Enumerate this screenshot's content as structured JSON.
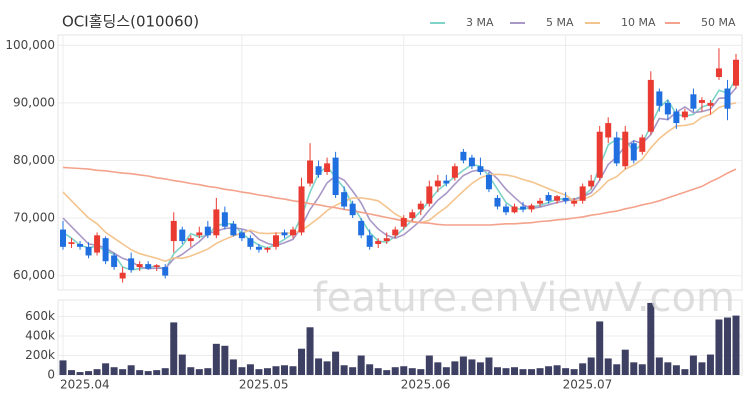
{
  "chart_data": {
    "type": "candlestick",
    "title": "OCI홀딩스(010060)",
    "watermark": "feature.enViewV.com",
    "open": [
      68000,
      65500,
      65500,
      65000,
      64000,
      66500,
      63500,
      59500,
      63000,
      61500,
      62000,
      61500,
      61500,
      66000,
      68000,
      66000,
      67000,
      68500,
      67000,
      71000,
      69000,
      67500,
      66500,
      65000,
      64500,
      65000,
      67500,
      67000,
      67500,
      76000,
      79000,
      78000,
      80500,
      74500,
      72500,
      69500,
      67000,
      65500,
      66000,
      67000,
      68500,
      70000,
      71500,
      72500,
      75500,
      76500,
      77000,
      81500,
      80500,
      79000,
      77500,
      73500,
      72000,
      71000,
      72000,
      71500,
      72500,
      74000,
      73000,
      73500,
      72500,
      73000,
      75500,
      77000,
      84000,
      84000,
      79000,
      83000,
      81500,
      85000,
      92000,
      90000,
      88500,
      87500,
      91500,
      90000,
      89500,
      94500,
      92500,
      93000
    ],
    "high": [
      69500,
      66500,
      66000,
      65800,
      67500,
      66800,
      64000,
      61500,
      64000,
      62500,
      62500,
      62000,
      62000,
      71000,
      68500,
      67000,
      68500,
      69500,
      73500,
      72000,
      69500,
      68000,
      67000,
      65500,
      65000,
      67500,
      68000,
      68500,
      77000,
      83000,
      80000,
      80500,
      81500,
      75500,
      73000,
      70000,
      68000,
      66500,
      67500,
      68500,
      70500,
      71500,
      73000,
      76500,
      77500,
      77500,
      79500,
      82000,
      81000,
      80500,
      78000,
      74000,
      72500,
      72500,
      72800,
      72500,
      73500,
      74500,
      74000,
      74500,
      73500,
      76000,
      77500,
      86000,
      87500,
      85000,
      86000,
      83500,
      84500,
      95500,
      92500,
      90500,
      89000,
      89000,
      92500,
      91000,
      90500,
      99500,
      94000,
      98500
    ],
    "low": [
      64500,
      64800,
      64500,
      63000,
      63500,
      62000,
      61000,
      58800,
      60500,
      60800,
      61000,
      60800,
      59500,
      64000,
      65500,
      65000,
      66500,
      66500,
      66500,
      68000,
      66800,
      66000,
      64500,
      64000,
      64000,
      64500,
      66500,
      66500,
      67000,
      75500,
      77000,
      77500,
      73500,
      71500,
      70000,
      66500,
      64500,
      64800,
      65500,
      66500,
      68000,
      69500,
      70500,
      72000,
      74500,
      75500,
      76500,
      79500,
      78500,
      77500,
      74500,
      71500,
      70500,
      70800,
      71000,
      71000,
      72000,
      72500,
      72500,
      72500,
      72000,
      72500,
      75000,
      76500,
      83000,
      79000,
      78500,
      79500,
      81000,
      84500,
      88500,
      87000,
      85500,
      87000,
      88500,
      88500,
      88000,
      94000,
      87000,
      92500
    ],
    "close": [
      65000,
      65800,
      65000,
      63500,
      67000,
      62500,
      61500,
      60500,
      61000,
      62000,
      61200,
      61800,
      60000,
      69500,
      66000,
      66500,
      67500,
      67000,
      71500,
      68500,
      67000,
      66500,
      65000,
      64500,
      64800,
      67000,
      67000,
      68000,
      75500,
      80000,
      77500,
      79500,
      74000,
      72000,
      70500,
      67000,
      65000,
      66000,
      66500,
      68000,
      70000,
      71000,
      72500,
      75500,
      76500,
      76000,
      79000,
      80000,
      79000,
      78000,
      75000,
      72000,
      71000,
      72000,
      71500,
      72200,
      73000,
      73000,
      73800,
      73000,
      73000,
      75500,
      76500,
      85000,
      86500,
      79500,
      85000,
      80000,
      84000,
      94000,
      89500,
      88000,
      86500,
      88500,
      89000,
      90500,
      90000,
      96000,
      89000,
      97500
    ],
    "up_color": "#ea3b32",
    "down_color": "#1f6fe0",
    "ylim": [
      57500,
      101800
    ],
    "yticks": [
      {
        "value": 60000,
        "label": "60,000"
      },
      {
        "value": 70000,
        "label": "70,000"
      },
      {
        "value": 80000,
        "label": "80,000"
      },
      {
        "value": 90000,
        "label": "90,000"
      },
      {
        "value": 100000,
        "label": "100,000"
      }
    ],
    "xticks": [
      {
        "value": 0,
        "label": "2025.04"
      },
      {
        "value": 21,
        "label": "2025.05"
      },
      {
        "value": 40,
        "label": "2025.06"
      },
      {
        "value": 59,
        "label": "2025.07"
      }
    ],
    "grid": true,
    "legend": "top-right",
    "moving_averages": [
      {
        "name": "3 MA",
        "color": "#7fd3c8",
        "values": [
          67500,
          66500,
          65300,
          64800,
          65200,
          64300,
          63700,
          61500,
          61000,
          61200,
          61400,
          61700,
          61000,
          63800,
          65200,
          67300,
          66700,
          67000,
          68700,
          69000,
          69000,
          67300,
          66200,
          65300,
          64800,
          65400,
          66300,
          67300,
          70200,
          74500,
          77700,
          79000,
          77000,
          75200,
          72200,
          69800,
          67500,
          66000,
          65800,
          66800,
          68200,
          69700,
          71200,
          73000,
          74800,
          76000,
          77200,
          78300,
          79300,
          79000,
          77300,
          75000,
          72700,
          71700,
          71500,
          71900,
          72200,
          72700,
          73300,
          73300,
          73300,
          73800,
          75000,
          79000,
          82700,
          83700,
          83700,
          81500,
          83000,
          86000,
          89200,
          90500,
          88000,
          87700,
          88000,
          89300,
          89800,
          92200,
          91700,
          94200
        ]
      },
      {
        "name": "5 MA",
        "color": "#a898c8",
        "values": [
          70000,
          68500,
          67000,
          65500,
          65300,
          64800,
          63900,
          63000,
          62500,
          61500,
          61200,
          61300,
          61200,
          62900,
          63700,
          64800,
          65900,
          67300,
          67700,
          68200,
          68300,
          68100,
          67700,
          66300,
          65600,
          65200,
          65700,
          66300,
          68500,
          71500,
          73600,
          76100,
          77300,
          76600,
          74700,
          72600,
          69700,
          68100,
          67000,
          66500,
          67100,
          68300,
          69600,
          71400,
          73100,
          74300,
          75900,
          77400,
          78100,
          78400,
          78200,
          76800,
          75000,
          73600,
          72300,
          71700,
          71900,
          72300,
          72700,
          73000,
          73200,
          73700,
          74400,
          76600,
          79300,
          80600,
          82500,
          83400,
          83000,
          84500,
          87300,
          87100,
          88400,
          89300,
          88300,
          88500,
          88900,
          90800,
          90900,
          92600
        ]
      },
      {
        "name": "10 MA",
        "color": "#f4c48e",
        "values": [
          74500,
          73000,
          71500,
          70000,
          69000,
          67500,
          66500,
          65500,
          64500,
          63800,
          63400,
          63000,
          62500,
          63100,
          63000,
          63400,
          64000,
          64600,
          65600,
          66300,
          66900,
          67400,
          67900,
          67400,
          67300,
          67400,
          67400,
          67400,
          67800,
          68900,
          70000,
          71300,
          72200,
          72900,
          73500,
          73500,
          73300,
          73000,
          71900,
          70700,
          69900,
          69300,
          69200,
          69600,
          70800,
          71900,
          73300,
          74700,
          76000,
          77000,
          77500,
          77600,
          77500,
          77200,
          76700,
          76300,
          75700,
          75100,
          74500,
          74000,
          72900,
          73300,
          73800,
          75000,
          76500,
          77200,
          78500,
          79200,
          80200,
          82200,
          83800,
          85000,
          86000,
          86100,
          86400,
          87500,
          88000,
          89200,
          89700,
          90000
        ]
      },
      {
        "name": "50 MA",
        "color": "#f4a28c",
        "values": [
          78800,
          78700,
          78600,
          78500,
          78300,
          78200,
          78000,
          77800,
          77700,
          77500,
          77300,
          77000,
          76800,
          76500,
          76300,
          76000,
          75800,
          75500,
          75300,
          75000,
          74800,
          74500,
          74300,
          74000,
          73800,
          73500,
          73300,
          73000,
          72800,
          72500,
          72300,
          72000,
          71800,
          71500,
          71300,
          71000,
          70700,
          70400,
          70100,
          69800,
          69500,
          69400,
          69200,
          69100,
          68900,
          68800,
          68800,
          68800,
          68800,
          68800,
          68800,
          68900,
          69000,
          69000,
          69100,
          69200,
          69400,
          69500,
          69700,
          69800,
          70000,
          70200,
          70500,
          70700,
          71000,
          71200,
          71600,
          71900,
          72300,
          72600,
          73000,
          73500,
          74000,
          74500,
          75000,
          75500,
          76300,
          77000,
          77800,
          78500
        ]
      }
    ],
    "volume": {
      "color": "#3e4063",
      "ylim": [
        0,
        770000
      ],
      "yticks": [
        0,
        {
          "value": 200000,
          "label": "200k"
        },
        {
          "value": 400000,
          "label": "400k"
        },
        {
          "value": 600000,
          "label": "600k"
        }
      ],
      "values": [
        150000,
        50000,
        30000,
        40000,
        60000,
        120000,
        80000,
        60000,
        100000,
        50000,
        40000,
        50000,
        70000,
        540000,
        210000,
        80000,
        60000,
        70000,
        320000,
        300000,
        160000,
        80000,
        110000,
        60000,
        70000,
        90000,
        100000,
        90000,
        270000,
        490000,
        170000,
        140000,
        240000,
        100000,
        80000,
        200000,
        110000,
        70000,
        50000,
        80000,
        90000,
        70000,
        60000,
        200000,
        130000,
        80000,
        140000,
        190000,
        160000,
        130000,
        180000,
        80000,
        70000,
        80000,
        60000,
        60000,
        70000,
        90000,
        100000,
        70000,
        60000,
        120000,
        180000,
        550000,
        170000,
        110000,
        260000,
        130000,
        110000,
        740000,
        180000,
        130000,
        100000,
        60000,
        200000,
        130000,
        210000,
        570000,
        590000,
        610000
      ]
    }
  }
}
